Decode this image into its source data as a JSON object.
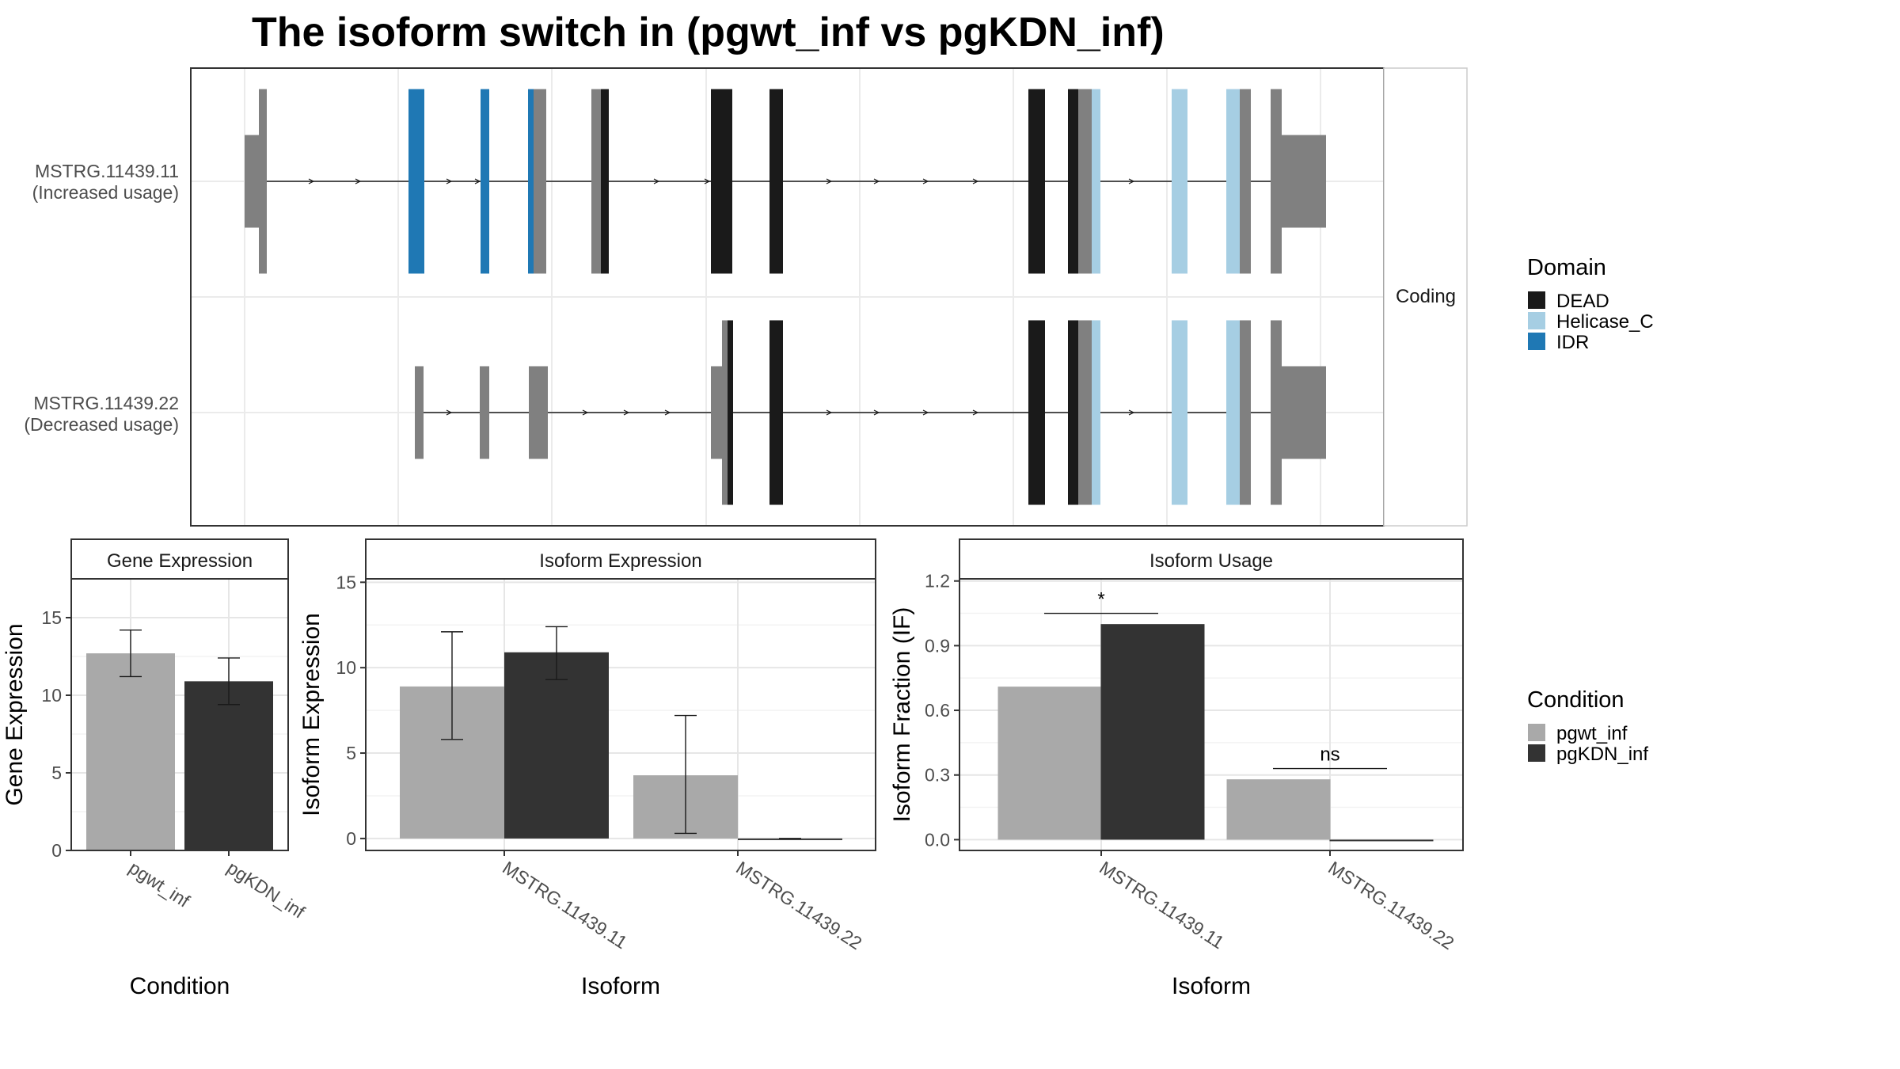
{
  "title": "The isoform switch in  (pgwt_inf vs pgKDN_inf)",
  "transcript_panel": {
    "strip_label": "Coding",
    "transcripts": [
      {
        "label_id": "MSTRG.11439.11",
        "label_usage": "(Increased usage)"
      },
      {
        "label_id": "MSTRG.11439.22",
        "label_usage": "(Decreased usage)"
      }
    ]
  },
  "legend_domain": {
    "title": "Domain",
    "items": [
      {
        "label": "DEAD",
        "color": "#1a1a1a"
      },
      {
        "label": "Helicase_C",
        "color": "#a6cee3"
      },
      {
        "label": "IDR",
        "color": "#1f78b4"
      }
    ]
  },
  "legend_condition": {
    "title": "Condition",
    "items": [
      {
        "label": "pgwt_inf",
        "color": "#a9a9a9"
      },
      {
        "label": "pgKDN_inf",
        "color": "#333333"
      }
    ]
  },
  "chart_data": [
    {
      "type": "bar",
      "title": "Gene Expression",
      "xlabel": "Condition",
      "ylabel": "Gene Expression",
      "categories": [
        "pgwt_inf",
        "pgKDN_inf"
      ],
      "values": [
        12.7,
        10.9
      ],
      "error_low": [
        11.2,
        9.4
      ],
      "error_high": [
        14.2,
        12.4
      ],
      "colors": [
        "#a9a9a9",
        "#333333"
      ],
      "ylim": [
        0,
        17.5
      ],
      "yticks": [
        0,
        5,
        10,
        15
      ],
      "grid": true
    },
    {
      "type": "bar",
      "title": "Isoform Expression",
      "xlabel": "Isoform",
      "ylabel": "Isoform Expression",
      "categories": [
        "MSTRG.11439.11",
        "MSTRG.11439.22"
      ],
      "series": [
        {
          "values": [
            8.9,
            3.7
          ],
          "error_low": [
            5.8,
            0.3
          ],
          "error_high": [
            12.1,
            7.2
          ],
          "color": "#a9a9a9"
        },
        {
          "values": [
            10.9,
            0.0
          ],
          "error_low": [
            9.3,
            0.0
          ],
          "error_high": [
            12.4,
            0.0
          ],
          "color": "#333333"
        }
      ],
      "ylim": [
        -0.7,
        15.2
      ],
      "yticks": [
        0,
        5,
        10,
        15
      ],
      "grid": true
    },
    {
      "type": "bar",
      "title": "Isoform Usage",
      "xlabel": "Isoform",
      "ylabel": "Isoform Fraction (IF)",
      "categories": [
        "MSTRG.11439.11",
        "MSTRG.11439.22"
      ],
      "series": [
        {
          "values": [
            0.71,
            0.28
          ],
          "color": "#a9a9a9"
        },
        {
          "values": [
            1.0,
            0.0
          ],
          "color": "#333333"
        }
      ],
      "significance": [
        "*",
        "ns"
      ],
      "ylim": [
        -0.05,
        1.21
      ],
      "yticks": [
        0.0,
        0.3,
        0.6,
        0.9,
        1.2
      ],
      "yticklabels": [
        "0.0",
        "0.3",
        "0.6",
        "0.9",
        "1.2"
      ],
      "grid": true
    }
  ]
}
